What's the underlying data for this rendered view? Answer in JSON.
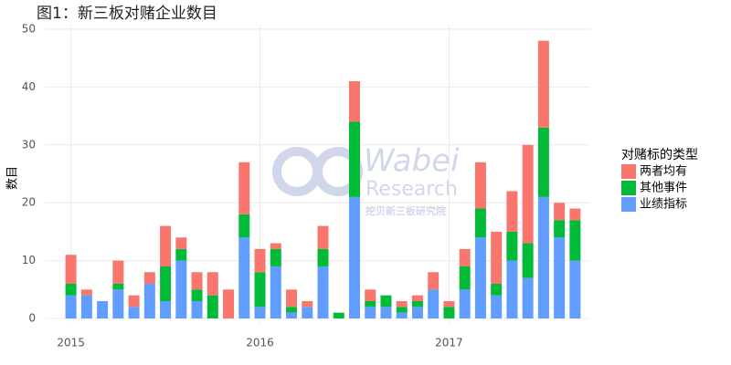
{
  "chart_data": {
    "type": "stacked_bar",
    "title": "图1：新三板对赌企业数目",
    "y_label": "数目",
    "legend_title": "对赌标的类型",
    "categories": [
      "2015",
      null,
      null,
      null,
      null,
      null,
      null,
      null,
      null,
      null,
      null,
      null,
      "2016",
      null,
      null,
      null,
      null,
      null,
      null,
      null,
      null,
      null,
      null,
      null,
      "2017",
      null,
      null,
      null,
      null,
      null,
      null,
      null,
      null
    ],
    "series": [
      {
        "name": "两者均有",
        "color": "#f8766d",
        "values": [
          5,
          1,
          0,
          4,
          2,
          2,
          7,
          2,
          3,
          4,
          5,
          9,
          4,
          1,
          3,
          1,
          4,
          0,
          7,
          2,
          0,
          1,
          1,
          3,
          1,
          3,
          8,
          9,
          7,
          17,
          15,
          3,
          2
        ]
      },
      {
        "name": "其他事件",
        "color": "#00ba38",
        "values": [
          2,
          0,
          0,
          1,
          0,
          0,
          6,
          2,
          2,
          4,
          0,
          4,
          6,
          3,
          1,
          0,
          3,
          1,
          13,
          1,
          2,
          1,
          1,
          0,
          2,
          4,
          5,
          2,
          5,
          6,
          12,
          3,
          7
        ]
      },
      {
        "name": "业绩指标",
        "color": "#619cff",
        "values": [
          4,
          4,
          3,
          5,
          2,
          6,
          3,
          10,
          3,
          0,
          0,
          14,
          2,
          9,
          1,
          2,
          9,
          0,
          21,
          2,
          2,
          1,
          2,
          5,
          0,
          5,
          14,
          4,
          10,
          7,
          21,
          14,
          10
        ]
      }
    ],
    "ylim": [
      0,
      50
    ],
    "yticks": [
      0,
      10,
      20,
      30,
      40,
      50
    ],
    "grid": true,
    "watermark": {
      "brand": "Wabei",
      "sub": "Research",
      "cn": "挖贝新三板研究院"
    }
  }
}
